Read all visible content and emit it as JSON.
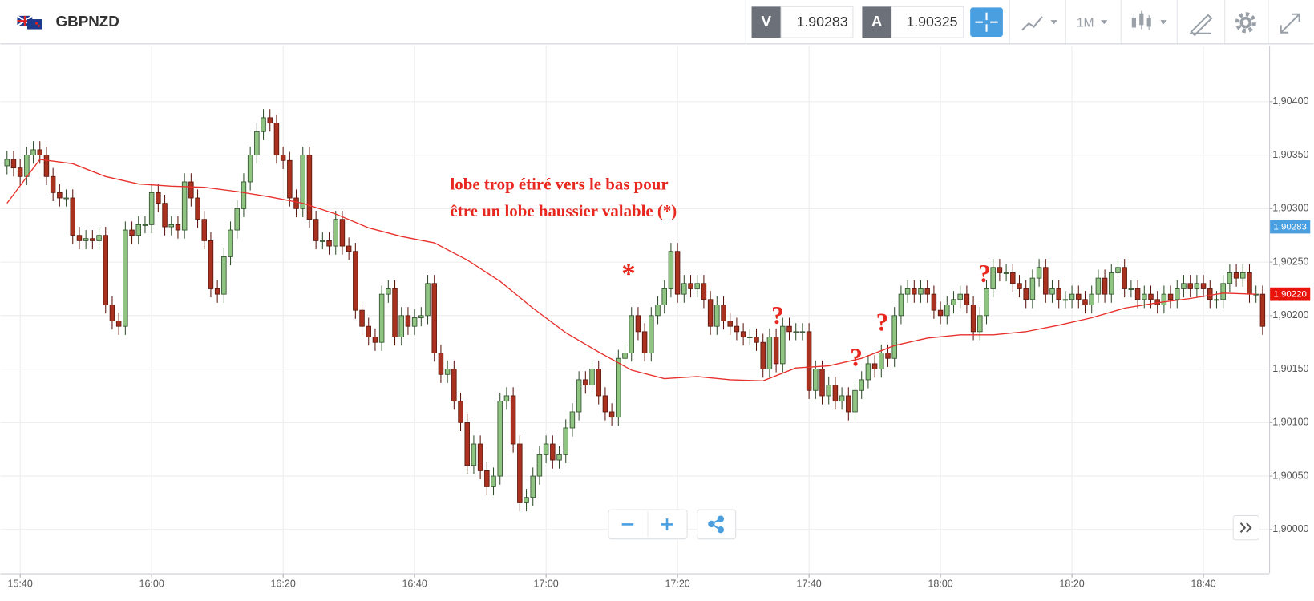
{
  "header": {
    "symbol": "GBPNZD",
    "bid_label": "V",
    "bid": "1.90283",
    "ask_label": "A",
    "ask": "1.90325",
    "timeframe": "1M"
  },
  "chart_data": {
    "type": "candlestick",
    "x": [
      938,
      939,
      940,
      941,
      942,
      943,
      944,
      945,
      946,
      947,
      948,
      949,
      950,
      951,
      952,
      953,
      954,
      955,
      956,
      957,
      958,
      959,
      960,
      961,
      962,
      963,
      964,
      965,
      966,
      967,
      968,
      969,
      970,
      971,
      972,
      973,
      974,
      975,
      976,
      977,
      978,
      979,
      980,
      981,
      982,
      983,
      984,
      985,
      986,
      987,
      988,
      989,
      990,
      991,
      992,
      993,
      994,
      995,
      996,
      997,
      998,
      999,
      1000,
      1001,
      1002,
      1003,
      1004,
      1005,
      1006,
      1007,
      1008,
      1009,
      1010,
      1011,
      1012,
      1013,
      1014,
      1015,
      1016,
      1017,
      1018,
      1019,
      1020,
      1021,
      1022,
      1023,
      1024,
      1025,
      1026,
      1027,
      1028,
      1029,
      1030,
      1031,
      1032,
      1033,
      1034,
      1035,
      1036,
      1037,
      1038,
      1039,
      1040,
      1041,
      1042,
      1043,
      1044,
      1045,
      1046,
      1047,
      1048,
      1049,
      1050,
      1051,
      1052,
      1053,
      1054,
      1055,
      1056,
      1057,
      1058,
      1059,
      1060,
      1061,
      1062,
      1063,
      1064,
      1065,
      1066,
      1067,
      1068,
      1069,
      1070,
      1071,
      1072,
      1073,
      1074,
      1075,
      1076,
      1077,
      1078,
      1079,
      1080,
      1081,
      1082,
      1083,
      1084,
      1085,
      1086,
      1087,
      1088,
      1089,
      1090,
      1091,
      1092,
      1093,
      1094,
      1095,
      1096,
      1097,
      1098,
      1099,
      1100,
      1101,
      1102,
      1103,
      1104,
      1105,
      1106,
      1107,
      1108,
      1109,
      1110,
      1111,
      1112,
      1113,
      1114,
      1115,
      1116,
      1117,
      1118,
      1119,
      1120,
      1121,
      1122,
      1123,
      1124,
      1125,
      1126,
      1127,
      1128,
      1129
    ],
    "open": [
      1.9034,
      1.90346,
      1.90338,
      1.9033,
      1.9035,
      1.90355,
      1.9035,
      1.9033,
      1.90315,
      1.9031,
      1.9031,
      1.90275,
      1.9027,
      1.90272,
      1.9027,
      1.90275,
      1.9021,
      1.90195,
      1.9019,
      1.9028,
      1.90275,
      1.90285,
      1.90285,
      1.90315,
      1.90305,
      1.90283,
      1.90285,
      1.9028,
      1.90325,
      1.9031,
      1.9029,
      1.9027,
      1.90225,
      1.9022,
      1.90255,
      1.9028,
      1.903,
      1.90325,
      1.9035,
      1.90372,
      1.90385,
      1.9038,
      1.9035,
      1.90345,
      1.9031,
      1.903,
      1.9035,
      1.9029,
      1.9027,
      1.9027,
      1.90265,
      1.9029,
      1.90265,
      1.9026,
      1.90205,
      1.9019,
      1.9018,
      1.90175,
      1.9022,
      1.90225,
      1.9018,
      1.902,
      1.9019,
      1.90198,
      1.902,
      1.9023,
      1.90165,
      1.90145,
      1.9015,
      1.9012,
      1.901,
      1.9006,
      1.9008,
      1.90055,
      1.9004,
      1.9005,
      1.9012,
      1.90125,
      1.9008,
      1.90025,
      1.9003,
      1.9005,
      1.9007,
      1.9008,
      1.90065,
      1.9007,
      1.90095,
      1.9011,
      1.9014,
      1.90135,
      1.9015,
      1.90125,
      1.9011,
      1.90105,
      1.9016,
      1.90165,
      1.902,
      1.90185,
      1.90165,
      1.902,
      1.9021,
      1.90225,
      1.9026,
      1.9022,
      1.9023,
      1.90225,
      1.9023,
      1.90215,
      1.9019,
      1.9021,
      1.90195,
      1.9019,
      1.90185,
      1.9018,
      1.9018,
      1.90175,
      1.9015,
      1.9018,
      1.90155,
      1.9019,
      1.90185,
      1.90185,
      1.90185,
      1.9013,
      1.9015,
      1.90125,
      1.90135,
      1.9012,
      1.90125,
      1.9011,
      1.9013,
      1.9014,
      1.90155,
      1.9015,
      1.90165,
      1.9016,
      1.902,
      1.9022,
      1.90225,
      1.9022,
      1.90225,
      1.9022,
      1.90205,
      1.902,
      1.9021,
      1.90215,
      1.9022,
      1.9021,
      1.90185,
      1.902,
      1.90225,
      1.90245,
      1.9024,
      1.9024,
      1.9023,
      1.90225,
      1.90215,
      1.90235,
      1.90245,
      1.9022,
      1.90225,
      1.90215,
      1.90215,
      1.9022,
      1.90215,
      1.9021,
      1.9022,
      1.90235,
      1.9022,
      1.9024,
      1.90245,
      1.90225,
      1.90225,
      1.90215,
      1.9022,
      1.90215,
      1.9021,
      1.9022,
      1.90215,
      1.90225,
      1.9023,
      1.90225,
      1.9023,
      1.90225,
      1.90215,
      1.90215,
      1.9023,
      1.9024,
      1.90235,
      1.9024,
      1.9022,
      1.9022
    ],
    "high": [
      1.90354,
      1.90354,
      1.90346,
      1.90358,
      1.90363,
      1.90363,
      1.90358,
      1.90338,
      1.90323,
      1.90318,
      1.90318,
      1.90283,
      1.9028,
      1.9028,
      1.90283,
      1.90283,
      1.90218,
      1.90203,
      1.90288,
      1.90288,
      1.90293,
      1.90293,
      1.90323,
      1.90323,
      1.90313,
      1.90293,
      1.90293,
      1.90333,
      1.90333,
      1.90318,
      1.90298,
      1.90278,
      1.90233,
      1.90263,
      1.90288,
      1.90308,
      1.90333,
      1.90358,
      1.9038,
      1.90393,
      1.90393,
      1.90388,
      1.90358,
      1.90353,
      1.90318,
      1.90358,
      1.90358,
      1.90298,
      1.90278,
      1.90278,
      1.90298,
      1.90298,
      1.90273,
      1.90268,
      1.90213,
      1.90198,
      1.90188,
      1.90228,
      1.90233,
      1.90233,
      1.90208,
      1.90208,
      1.90206,
      1.90208,
      1.90238,
      1.90238,
      1.90173,
      1.90158,
      1.90158,
      1.90128,
      1.90108,
      1.90088,
      1.90088,
      1.90063,
      1.90058,
      1.90128,
      1.90133,
      1.90133,
      1.90088,
      1.90038,
      1.90058,
      1.90078,
      1.90088,
      1.90088,
      1.90078,
      1.90103,
      1.90118,
      1.90148,
      1.90148,
      1.90158,
      1.90158,
      1.90133,
      1.90118,
      1.90168,
      1.90173,
      1.90208,
      1.90208,
      1.90193,
      1.90208,
      1.90218,
      1.90233,
      1.90268,
      1.90268,
      1.90238,
      1.90238,
      1.90238,
      1.90238,
      1.90223,
      1.90218,
      1.90218,
      1.90203,
      1.90198,
      1.90193,
      1.90188,
      1.90188,
      1.90183,
      1.90188,
      1.90188,
      1.90198,
      1.90198,
      1.90193,
      1.90193,
      1.90193,
      1.90158,
      1.90158,
      1.90143,
      1.90143,
      1.90133,
      1.90133,
      1.90138,
      1.90148,
      1.90163,
      1.90163,
      1.90173,
      1.90173,
      1.90208,
      1.90228,
      1.90233,
      1.90233,
      1.90233,
      1.90233,
      1.90228,
      1.90213,
      1.90218,
      1.90223,
      1.90228,
      1.90228,
      1.90218,
      1.90208,
      1.90233,
      1.90253,
      1.90253,
      1.90248,
      1.90248,
      1.90238,
      1.90233,
      1.90243,
      1.90253,
      1.90253,
      1.90233,
      1.90233,
      1.90223,
      1.90228,
      1.90228,
      1.90223,
      1.90228,
      1.90243,
      1.90243,
      1.90248,
      1.90253,
      1.90253,
      1.90233,
      1.90233,
      1.90228,
      1.90228,
      1.90223,
      1.90228,
      1.90228,
      1.90233,
      1.90238,
      1.90238,
      1.90238,
      1.90238,
      1.90233,
      1.90223,
      1.90238,
      1.90248,
      1.90248,
      1.90248,
      1.90248,
      1.90228,
      1.90228
    ],
    "low": [
      1.90332,
      1.9033,
      1.90322,
      1.90322,
      1.90342,
      1.90342,
      1.90322,
      1.90307,
      1.90302,
      1.90302,
      1.90267,
      1.90262,
      1.90262,
      1.90262,
      1.90262,
      1.90202,
      1.90187,
      1.90182,
      1.90182,
      1.90267,
      1.90267,
      1.90277,
      1.90277,
      1.90297,
      1.90275,
      1.90275,
      1.90272,
      1.90272,
      1.90302,
      1.90282,
      1.90262,
      1.90217,
      1.90212,
      1.90212,
      1.90247,
      1.90272,
      1.90292,
      1.90317,
      1.90342,
      1.90364,
      1.90372,
      1.90342,
      1.90337,
      1.90302,
      1.90292,
      1.90292,
      1.90282,
      1.90262,
      1.90262,
      1.90257,
      1.90257,
      1.90257,
      1.90252,
      1.90197,
      1.90182,
      1.90172,
      1.90167,
      1.90167,
      1.90212,
      1.90172,
      1.90172,
      1.90182,
      1.90182,
      1.9019,
      1.90192,
      1.90157,
      1.90137,
      1.90137,
      1.90112,
      1.90092,
      1.90052,
      1.90052,
      1.90047,
      1.90032,
      1.90032,
      1.90042,
      1.90112,
      1.90072,
      1.90017,
      1.90017,
      1.90022,
      1.90042,
      1.90062,
      1.90057,
      1.90057,
      1.90062,
      1.90087,
      1.90102,
      1.90127,
      1.90127,
      1.90117,
      1.90102,
      1.90097,
      1.90097,
      1.90152,
      1.90157,
      1.90177,
      1.90157,
      1.90157,
      1.90192,
      1.90202,
      1.90217,
      1.90212,
      1.90212,
      1.90217,
      1.90217,
      1.90207,
      1.90182,
      1.90182,
      1.90187,
      1.90182,
      1.90177,
      1.90172,
      1.90172,
      1.90167,
      1.90142,
      1.90142,
      1.90147,
      1.90147,
      1.90177,
      1.90177,
      1.90177,
      1.90122,
      1.90122,
      1.90117,
      1.90117,
      1.90112,
      1.90112,
      1.90102,
      1.90102,
      1.90122,
      1.90132,
      1.90142,
      1.90142,
      1.90152,
      1.90152,
      1.90192,
      1.90212,
      1.90212,
      1.90212,
      1.90212,
      1.90197,
      1.90192,
      1.90192,
      1.90202,
      1.90207,
      1.90202,
      1.90177,
      1.90177,
      1.90192,
      1.90217,
      1.90232,
      1.90232,
      1.90222,
      1.90217,
      1.90207,
      1.90207,
      1.90227,
      1.90212,
      1.90212,
      1.90207,
      1.90207,
      1.90207,
      1.90207,
      1.90202,
      1.90202,
      1.90212,
      1.90212,
      1.90212,
      1.90232,
      1.90217,
      1.90217,
      1.90207,
      1.90207,
      1.90207,
      1.90202,
      1.90202,
      1.90207,
      1.90207,
      1.90217,
      1.90217,
      1.90217,
      1.90217,
      1.90207,
      1.90207,
      1.90207,
      1.90222,
      1.90227,
      1.90227,
      1.90212,
      1.90212,
      1.90182
    ],
    "close": [
      1.90346,
      1.90338,
      1.9033,
      1.9035,
      1.90355,
      1.9035,
      1.9033,
      1.90315,
      1.9031,
      1.9031,
      1.90275,
      1.9027,
      1.90272,
      1.9027,
      1.90275,
      1.9021,
      1.90195,
      1.9019,
      1.9028,
      1.90275,
      1.90285,
      1.90285,
      1.90315,
      1.90305,
      1.90283,
      1.90285,
      1.9028,
      1.90325,
      1.9031,
      1.9029,
      1.9027,
      1.90225,
      1.9022,
      1.90255,
      1.9028,
      1.903,
      1.90325,
      1.9035,
      1.90372,
      1.90385,
      1.9038,
      1.9035,
      1.90345,
      1.9031,
      1.903,
      1.9035,
      1.9029,
      1.9027,
      1.9027,
      1.90265,
      1.9029,
      1.90265,
      1.9026,
      1.90205,
      1.9019,
      1.9018,
      1.90175,
      1.9022,
      1.90225,
      1.9018,
      1.902,
      1.9019,
      1.90198,
      1.902,
      1.9023,
      1.90165,
      1.90145,
      1.9015,
      1.9012,
      1.901,
      1.9006,
      1.9008,
      1.90055,
      1.9004,
      1.9005,
      1.9012,
      1.90125,
      1.9008,
      1.90025,
      1.9003,
      1.9005,
      1.9007,
      1.9008,
      1.90065,
      1.9007,
      1.90095,
      1.9011,
      1.9014,
      1.90135,
      1.9015,
      1.90125,
      1.9011,
      1.90105,
      1.9016,
      1.90165,
      1.902,
      1.90185,
      1.90165,
      1.902,
      1.9021,
      1.90225,
      1.9026,
      1.9022,
      1.9023,
      1.90225,
      1.9023,
      1.90215,
      1.9019,
      1.9021,
      1.90195,
      1.9019,
      1.90185,
      1.9018,
      1.9018,
      1.90175,
      1.9015,
      1.9018,
      1.90155,
      1.9019,
      1.90185,
      1.90185,
      1.90185,
      1.9013,
      1.9015,
      1.90125,
      1.90135,
      1.9012,
      1.90125,
      1.9011,
      1.9013,
      1.9014,
      1.90155,
      1.9015,
      1.90165,
      1.9016,
      1.902,
      1.9022,
      1.90225,
      1.9022,
      1.90225,
      1.9022,
      1.90205,
      1.902,
      1.9021,
      1.90215,
      1.9022,
      1.9021,
      1.90185,
      1.902,
      1.90225,
      1.90245,
      1.9024,
      1.9024,
      1.9023,
      1.90225,
      1.90215,
      1.90235,
      1.90245,
      1.9022,
      1.90225,
      1.90215,
      1.90215,
      1.9022,
      1.90215,
      1.9021,
      1.9022,
      1.90235,
      1.9022,
      1.9024,
      1.90245,
      1.90225,
      1.90225,
      1.90215,
      1.9022,
      1.90215,
      1.9021,
      1.9022,
      1.90215,
      1.90225,
      1.9023,
      1.90225,
      1.9023,
      1.90225,
      1.90215,
      1.90215,
      1.9023,
      1.9024,
      1.90235,
      1.9024,
      1.9022,
      1.9022,
      1.9019
    ],
    "up_color": "#8fc483",
    "down_color": "#a8321f",
    "xlim": [
      937,
      1130
    ],
    "xticks": [
      {
        "value": 940,
        "label": "15:40"
      },
      {
        "value": 960,
        "label": "16:00"
      },
      {
        "value": 980,
        "label": "16:20"
      },
      {
        "value": 1000,
        "label": "16:40"
      },
      {
        "value": 1020,
        "label": "17:00"
      },
      {
        "value": 1040,
        "label": "17:20"
      },
      {
        "value": 1060,
        "label": "17:40"
      },
      {
        "value": 1080,
        "label": "18:00"
      },
      {
        "value": 1100,
        "label": "18:20"
      },
      {
        "value": 1120,
        "label": "18:40"
      }
    ],
    "ylim": [
      1.89959,
      1.90452
    ],
    "yticks": [
      {
        "value": 1.9,
        "label": "1,90000"
      },
      {
        "value": 1.9005,
        "label": "1,90050"
      },
      {
        "value": 1.901,
        "label": "1,90100"
      },
      {
        "value": 1.9015,
        "label": "1,90150"
      },
      {
        "value": 1.902,
        "label": "1,90200"
      },
      {
        "value": 1.9025,
        "label": "1,90250"
      },
      {
        "value": 1.903,
        "label": "1,90300"
      },
      {
        "value": 1.9035,
        "label": "1,90350"
      },
      {
        "value": 1.904,
        "label": "1,90400"
      }
    ],
    "grid": true,
    "moving_average": {
      "color": "#e8302c",
      "x": [
        938,
        943,
        948,
        953,
        958,
        963,
        968,
        973,
        978,
        983,
        988,
        993,
        998,
        1003,
        1008,
        1013,
        1018,
        1023,
        1028,
        1033,
        1038,
        1043,
        1048,
        1053,
        1058,
        1063,
        1068,
        1073,
        1078,
        1083,
        1088,
        1093,
        1098,
        1103,
        1108,
        1113,
        1118,
        1123,
        1128
      ],
      "values": [
        1.90305,
        1.90346,
        1.90342,
        1.9033,
        1.90323,
        1.90321,
        1.9032,
        1.90316,
        1.90311,
        1.90305,
        1.90295,
        1.90282,
        1.90274,
        1.90268,
        1.90252,
        1.90232,
        1.90207,
        1.90184,
        1.90166,
        1.90149,
        1.90141,
        1.90143,
        1.9014,
        1.90139,
        1.90151,
        1.90153,
        1.9016,
        1.90172,
        1.90179,
        1.90182,
        1.90182,
        1.90185,
        1.90191,
        1.90198,
        1.90207,
        1.90212,
        1.90216,
        1.90221,
        1.9022
      ]
    },
    "price_markers": [
      {
        "value": 1.90283,
        "label": "1,90283",
        "color": "#4a9fe0"
      },
      {
        "value": 1.9022,
        "label": "1,90220",
        "color": "#e8140c"
      }
    ],
    "annotations": [
      {
        "text": "lobe trop étiré vers le bas pour"
      },
      {
        "text": "être un lobe haussier valable (*)"
      },
      {
        "text": "*"
      },
      {
        "text": "?"
      },
      {
        "text": "?"
      },
      {
        "text": "?"
      },
      {
        "text": "?"
      }
    ]
  }
}
